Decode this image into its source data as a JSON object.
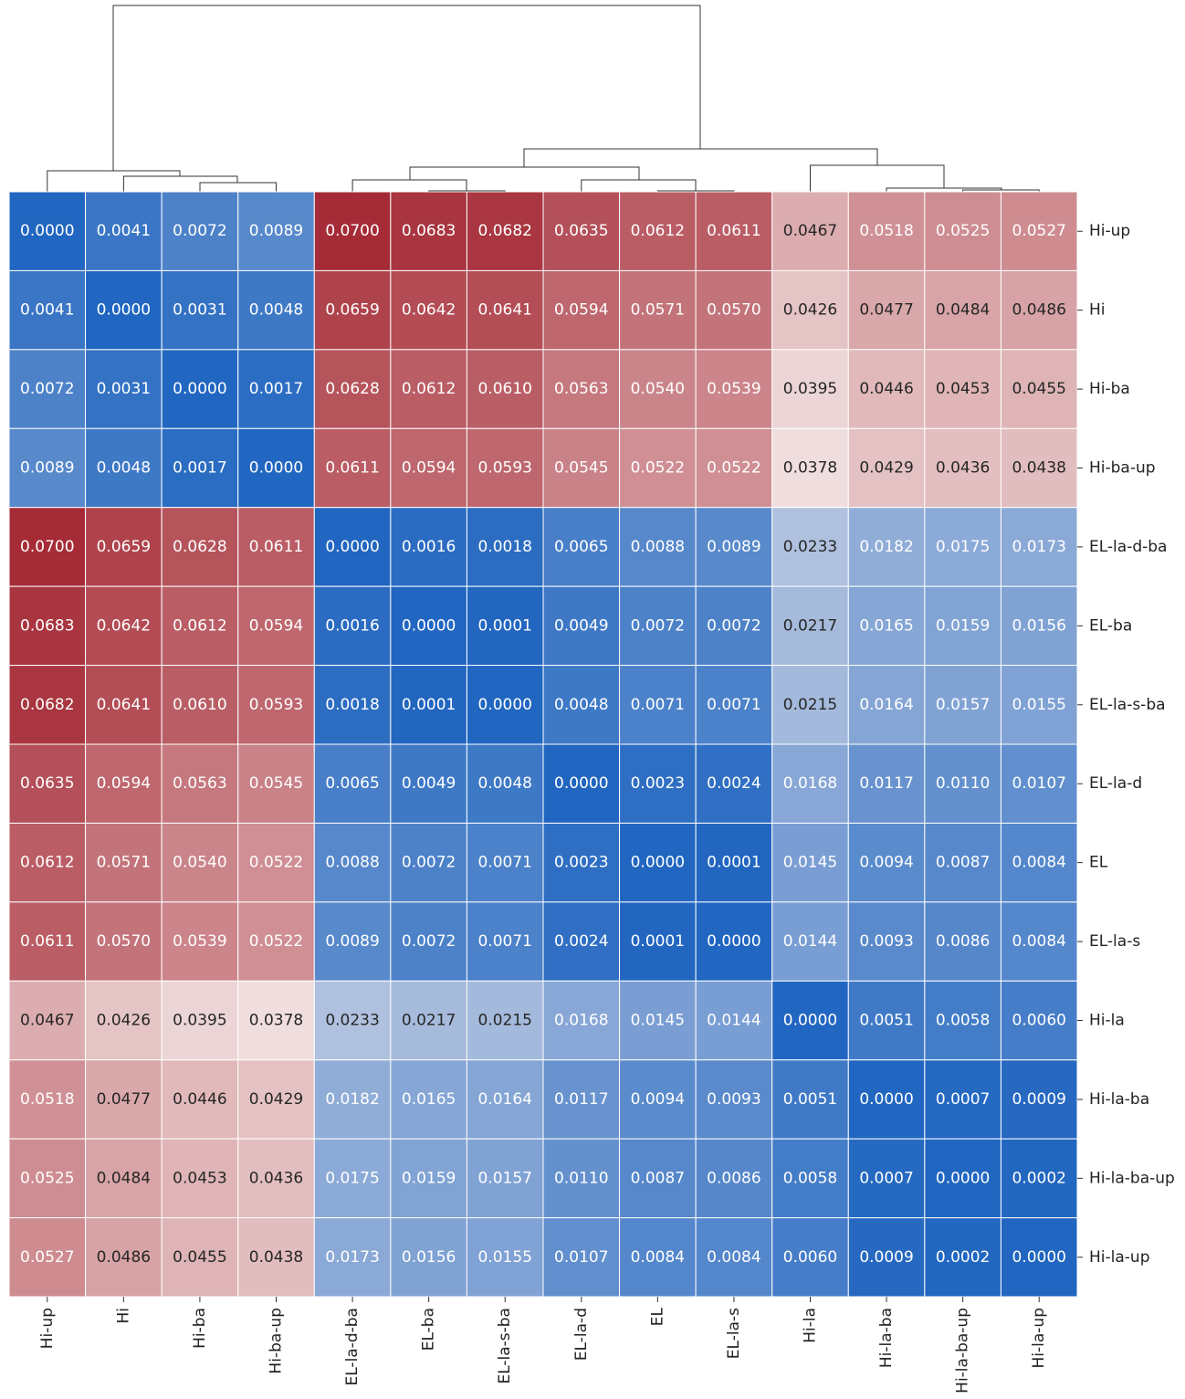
{
  "chart_data": {
    "type": "heatmap",
    "xcategories": [
      "Hi-up",
      "Hi",
      "Hi-ba",
      "Hi-ba-up",
      "EL-la-d-ba",
      "EL-ba",
      "EL-la-s-ba",
      "EL-la-d",
      "EL",
      "EL-la-s",
      "Hi-la",
      "Hi-la-ba",
      "Hi-la-ba-up",
      "Hi-la-up"
    ],
    "ycategories": [
      "Hi-up",
      "Hi",
      "Hi-ba",
      "Hi-ba-up",
      "EL-la-d-ba",
      "EL-ba",
      "EL-la-s-ba",
      "EL-la-d",
      "EL",
      "EL-la-s",
      "Hi-la",
      "Hi-la-ba",
      "Hi-la-ba-up",
      "Hi-la-up"
    ],
    "colors": [
      "#2166c0",
      "#f7eeed",
      "#a52c37"
    ],
    "values": [
      [
        0,
        0.0041,
        0.0072,
        0.0089,
        0.07,
        0.0683,
        0.0682,
        0.0635,
        0.0612,
        0.0611,
        0.0467,
        0.0518,
        0.0525,
        0.0527
      ],
      [
        0.0041,
        0,
        0.0031,
        0.0048,
        0.0659,
        0.0642,
        0.0641,
        0.0594,
        0.0571,
        0.057,
        0.0426,
        0.0477,
        0.0484,
        0.0486
      ],
      [
        0.0072,
        0.0031,
        0,
        0.0017,
        0.0628,
        0.0612,
        0.061,
        0.0563,
        0.054,
        0.0539,
        0.0395,
        0.0446,
        0.0453,
        0.0455
      ],
      [
        0.0089,
        0.0048,
        0.0017,
        0,
        0.0611,
        0.0594,
        0.0593,
        0.0545,
        0.0522,
        0.0522,
        0.0378,
        0.0429,
        0.0436,
        0.0438
      ],
      [
        0.07,
        0.0659,
        0.0628,
        0.0611,
        0,
        0.0016,
        0.0018,
        0.0065,
        0.0088,
        0.0089,
        0.0233,
        0.0182,
        0.0175,
        0.0173
      ],
      [
        0.0683,
        0.0642,
        0.0612,
        0.0594,
        0.0016,
        0,
        0.0001,
        0.0049,
        0.0072,
        0.0072,
        0.0217,
        0.0165,
        0.0159,
        0.0156
      ],
      [
        0.0682,
        0.0641,
        0.061,
        0.0593,
        0.0018,
        0.0001,
        0,
        0.0048,
        0.0071,
        0.0071,
        0.0215,
        0.0164,
        0.0157,
        0.0155
      ],
      [
        0.0635,
        0.0594,
        0.0563,
        0.0545,
        0.0065,
        0.0049,
        0.0048,
        0,
        0.0023,
        0.0024,
        0.0168,
        0.0117,
        0.011,
        0.0107
      ],
      [
        0.0612,
        0.0571,
        0.054,
        0.0522,
        0.0088,
        0.0072,
        0.0071,
        0.0023,
        0,
        0.0001,
        0.0145,
        0.0094,
        0.0087,
        0.0084
      ],
      [
        0.0611,
        0.057,
        0.0539,
        0.0522,
        0.0089,
        0.0072,
        0.0071,
        0.0024,
        0.0001,
        0,
        0.0144,
        0.0093,
        0.0086,
        0.0084
      ],
      [
        0.0467,
        0.0426,
        0.0395,
        0.0378,
        0.0233,
        0.0217,
        0.0215,
        0.0168,
        0.0145,
        0.0144,
        0,
        0.0051,
        0.0058,
        0.006
      ],
      [
        0.0518,
        0.0477,
        0.0446,
        0.0429,
        0.0182,
        0.0165,
        0.0164,
        0.0117,
        0.0094,
        0.0093,
        0.0051,
        0,
        0.0007,
        0.0009
      ],
      [
        0.0525,
        0.0484,
        0.0453,
        0.0436,
        0.0175,
        0.0159,
        0.0157,
        0.011,
        0.0087,
        0.0086,
        0.0058,
        0.0007,
        0,
        0.0002
      ],
      [
        0.0527,
        0.0486,
        0.0455,
        0.0438,
        0.0173,
        0.0156,
        0.0155,
        0.0107,
        0.0084,
        0.0084,
        0.006,
        0.0009,
        0.0002,
        0
      ]
    ],
    "value_labels": [
      [
        "0.0000",
        "0.0041",
        "0.0072",
        "0.0089",
        "0.0700",
        "0.0683",
        "0.0682",
        "0.0635",
        "0.0612",
        "0.0611",
        "0.0467",
        "0.0518",
        "0.0525",
        "0.0527"
      ],
      [
        "0.0041",
        "0.0000",
        "0.0031",
        "0.0048",
        "0.0659",
        "0.0642",
        "0.0641",
        "0.0594",
        "0.0571",
        "0.0570",
        "0.0426",
        "0.0477",
        "0.0484",
        "0.0486"
      ],
      [
        "0.0072",
        "0.0031",
        "0.0000",
        "0.0017",
        "0.0628",
        "0.0612",
        "0.0610",
        "0.0563",
        "0.0540",
        "0.0539",
        "0.0395",
        "0.0446",
        "0.0453",
        "0.0455"
      ],
      [
        "0.0089",
        "0.0048",
        "0.0017",
        "0.0000",
        "0.0611",
        "0.0594",
        "0.0593",
        "0.0545",
        "0.0522",
        "0.0522",
        "0.0378",
        "0.0429",
        "0.0436",
        "0.0438"
      ],
      [
        "0.0700",
        "0.0659",
        "0.0628",
        "0.0611",
        "0.0000",
        "0.0016",
        "0.0018",
        "0.0065",
        "0.0088",
        "0.0089",
        "0.0233",
        "0.0182",
        "0.0175",
        "0.0173"
      ],
      [
        "0.0683",
        "0.0642",
        "0.0612",
        "0.0594",
        "0.0016",
        "0.0000",
        "0.0001",
        "0.0049",
        "0.0072",
        "0.0072",
        "0.0217",
        "0.0165",
        "0.0159",
        "0.0156"
      ],
      [
        "0.0682",
        "0.0641",
        "0.0610",
        "0.0593",
        "0.0018",
        "0.0001",
        "0.0000",
        "0.0048",
        "0.0071",
        "0.0071",
        "0.0215",
        "0.0164",
        "0.0157",
        "0.0155"
      ],
      [
        "0.0635",
        "0.0594",
        "0.0563",
        "0.0545",
        "0.0065",
        "0.0049",
        "0.0048",
        "0.0000",
        "0.0023",
        "0.0024",
        "0.0168",
        "0.0117",
        "0.0110",
        "0.0107"
      ],
      [
        "0.0612",
        "0.0571",
        "0.0540",
        "0.0522",
        "0.0088",
        "0.0072",
        "0.0071",
        "0.0023",
        "0.0000",
        "0.0001",
        "0.0145",
        "0.0094",
        "0.0087",
        "0.0084"
      ],
      [
        "0.0611",
        "0.0570",
        "0.0539",
        "0.0522",
        "0.0089",
        "0.0072",
        "0.0071",
        "0.0024",
        "0.0001",
        "0.0000",
        "0.0144",
        "0.0093",
        "0.0086",
        "0.0084"
      ],
      [
        "0.0467",
        "0.0426",
        "0.0395",
        "0.0378",
        "0.0233",
        "0.0217",
        "0.0215",
        "0.0168",
        "0.0145",
        "0.0144",
        "0.0000",
        "0.0051",
        "0.0058",
        "0.0060"
      ],
      [
        "0.0518",
        "0.0477",
        "0.0446",
        "0.0429",
        "0.0182",
        "0.0165",
        "0.0164",
        "0.0117",
        "0.0094",
        "0.0093",
        "0.0051",
        "0.0000",
        "0.0007",
        "0.0009"
      ],
      [
        "0.0525",
        "0.0484",
        "0.0453",
        "0.0436",
        "0.0175",
        "0.0159",
        "0.0157",
        "0.0110",
        "0.0087",
        "0.0086",
        "0.0058",
        "0.0007",
        "0.0000",
        "0.0002"
      ],
      [
        "0.0527",
        "0.0486",
        "0.0455",
        "0.0438",
        "0.0173",
        "0.0156",
        "0.0155",
        "0.0107",
        "0.0084",
        "0.0084",
        "0.0060",
        "0.0009",
        "0.0002",
        "0.0000"
      ]
    ]
  }
}
